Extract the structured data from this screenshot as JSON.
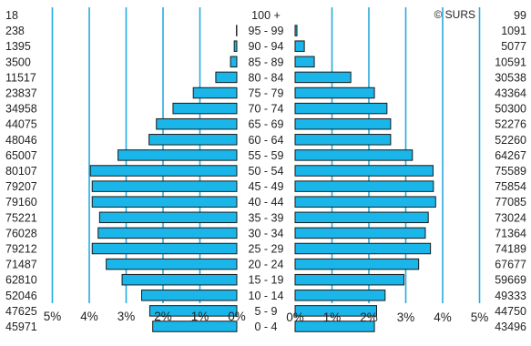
{
  "chart_data": {
    "type": "bar",
    "title": "",
    "watermark": "© SURS",
    "orientation": "horizontal-pyramid",
    "bar_color": "#1ab6ea",
    "grid_color": "#29a9de",
    "ages": [
      "100 +",
      "95 - 99",
      "90 - 94",
      "85 - 89",
      "80 - 84",
      "75 - 79",
      "70 - 74",
      "65 - 69",
      "60 - 64",
      "55 - 59",
      "50 - 54",
      "45 - 49",
      "40 - 44",
      "35 - 39",
      "30 - 34",
      "25 - 29",
      "20 - 24",
      "15 - 19",
      "10 - 14",
      "5 - 9",
      "0 - 4"
    ],
    "series": [
      {
        "side": "left",
        "counts": [
          "18",
          "238",
          "1395",
          "3500",
          "11517",
          "23837",
          "34958",
          "44075",
          "48046",
          "65007",
          "80107",
          "79207",
          "79160",
          "75221",
          "76028",
          "79212",
          "71487",
          "62810",
          "52046",
          "47625",
          "45971"
        ],
        "values": [
          0.0,
          0.01,
          0.07,
          0.17,
          0.57,
          1.18,
          1.73,
          2.18,
          2.38,
          3.22,
          3.97,
          3.92,
          3.92,
          3.72,
          3.76,
          3.92,
          3.54,
          3.11,
          2.58,
          2.36,
          2.28
        ]
      },
      {
        "side": "right",
        "counts": [
          "99",
          "1091",
          "5077",
          "10591",
          "30538",
          "43364",
          "50300",
          "52276",
          "52260",
          "64267",
          "75589",
          "75854",
          "77085",
          "73024",
          "71364",
          "74189",
          "67677",
          "59669",
          "49333",
          "44750",
          "43496"
        ],
        "values": [
          0.0,
          0.05,
          0.25,
          0.52,
          1.51,
          2.15,
          2.49,
          2.59,
          2.59,
          3.18,
          3.74,
          3.75,
          3.81,
          3.61,
          3.53,
          3.67,
          3.35,
          2.95,
          2.44,
          2.21,
          2.15
        ]
      }
    ],
    "left_axis": {
      "ticks": [
        "5%",
        "4%",
        "3%",
        "2%",
        "1%",
        "0%"
      ],
      "range": [
        0,
        5
      ]
    },
    "right_axis": {
      "ticks": [
        "0%",
        "1%",
        "2%",
        "3%",
        "4%",
        "5%"
      ],
      "range": [
        0,
        5
      ]
    },
    "grid": true
  }
}
